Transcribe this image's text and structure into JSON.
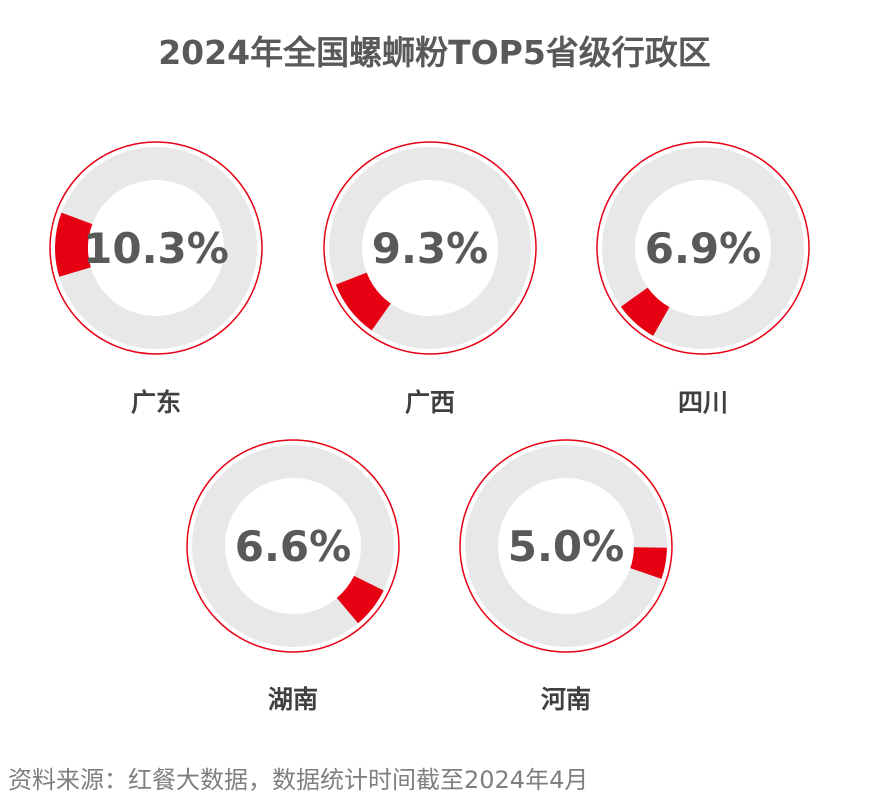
{
  "chart_data": {
    "type": "pie",
    "title": "2024年全国螺蛳粉TOP5省级行政区",
    "categories": [
      "广东",
      "广西",
      "四川",
      "湖南",
      "河南"
    ],
    "values": [
      10.3,
      9.3,
      6.9,
      6.6,
      5.0
    ],
    "value_labels": [
      "10.3%",
      "9.3%",
      "6.9%",
      "6.6%",
      "5.0%"
    ],
    "unit": "%",
    "colors": {
      "highlight": "#e60012",
      "track": "#e8e8e8",
      "outline": "#e60012",
      "text": "#595959"
    }
  },
  "source": "资料来源：红餐大数据，数据统计时间截至2024年4月"
}
